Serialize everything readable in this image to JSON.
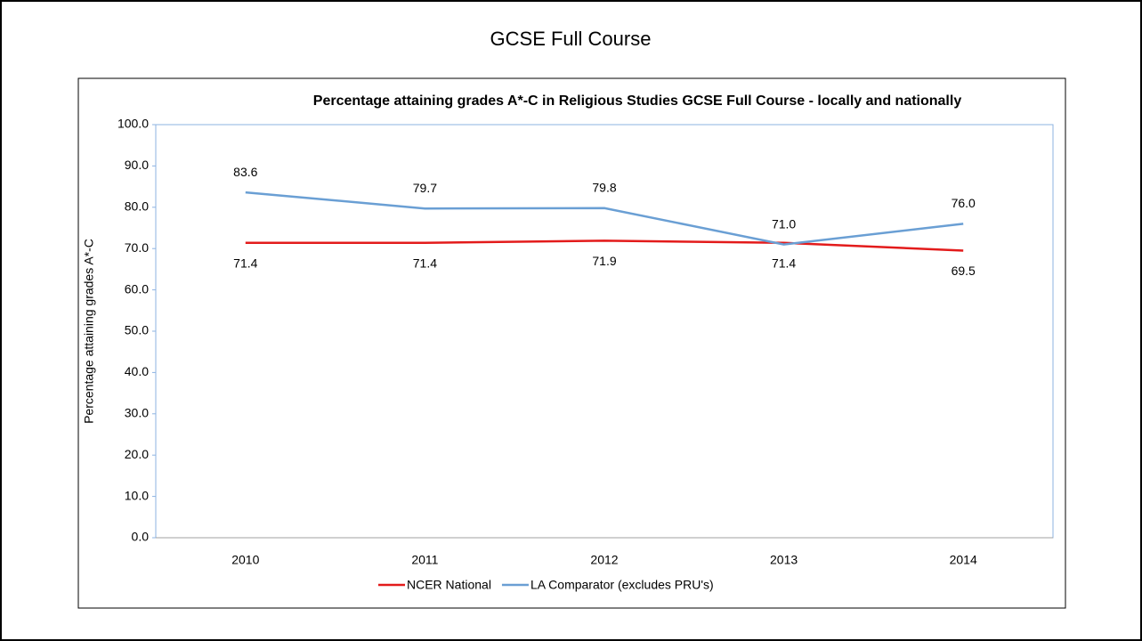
{
  "slide": {
    "title": "GCSE Full Course"
  },
  "chart_data": {
    "type": "line",
    "title": "Percentage attaining grades A*-C in Religious Studies GCSE Full Course - locally and nationally",
    "y_label": "Percentage attaining grades A*-C",
    "categories": [
      "2010",
      "2011",
      "2012",
      "2013",
      "2014"
    ],
    "series": [
      {
        "name": "NCER National",
        "color": "#e31b1b",
        "values": [
          71.4,
          71.4,
          71.9,
          71.4,
          69.5
        ],
        "value_labels": [
          "71.4",
          "71.4",
          "71.9",
          "71.4",
          "69.5"
        ]
      },
      {
        "name": "LA Comparator (excludes PRU's)",
        "color": "#6a9fd4",
        "values": [
          83.6,
          79.7,
          79.8,
          71.0,
          76.0
        ],
        "value_labels": [
          "83.6",
          "79.7",
          "79.8",
          "71.0",
          "76.0"
        ]
      }
    ],
    "ylim": [
      0,
      100
    ],
    "yticks": [
      {
        "value": 0,
        "label": "0.0"
      },
      {
        "value": 10,
        "label": "10.0"
      },
      {
        "value": 20,
        "label": "20.0"
      },
      {
        "value": 30,
        "label": "30.0"
      },
      {
        "value": 40,
        "label": "40.0"
      },
      {
        "value": 50,
        "label": "50.0"
      },
      {
        "value": 60,
        "label": "60.0"
      },
      {
        "value": 70,
        "label": "70.0"
      },
      {
        "value": 80,
        "label": "80.0"
      },
      {
        "value": 90,
        "label": "90.0"
      },
      {
        "value": 100,
        "label": "100.0"
      }
    ],
    "legend": "bottom"
  }
}
